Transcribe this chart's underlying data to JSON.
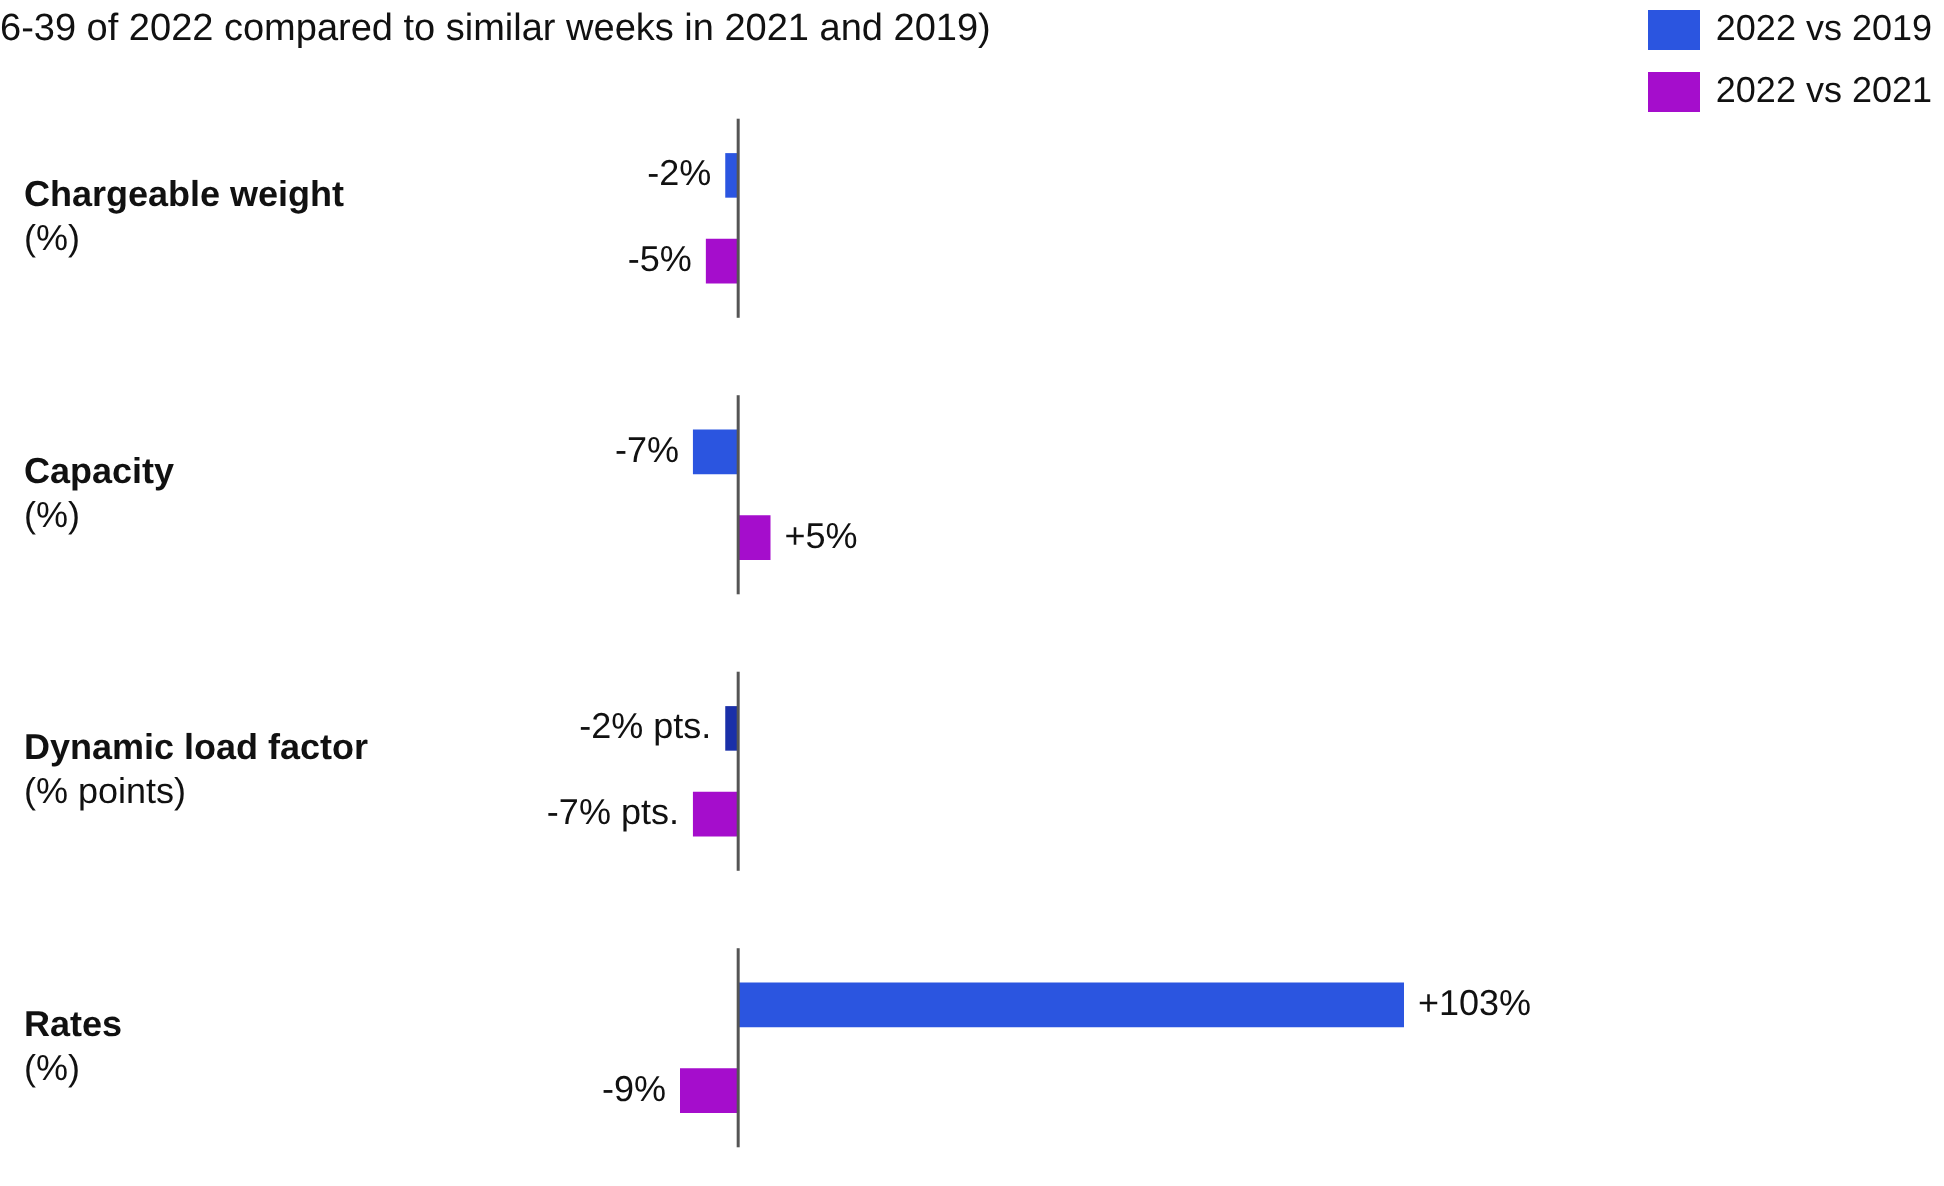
{
  "chart_data": {
    "type": "bar",
    "orientation": "horizontal",
    "title": "6-39 of 2022 compared to similar weeks in 2021 and 2019)",
    "categories": [
      "Chargeable weight\n(%)",
      "Capacity\n(%)",
      "Dynamic load factor\n(% points)",
      "Rates\n(%)"
    ],
    "series": [
      {
        "name": "2022 vs 2019",
        "color": "#2b55e0",
        "colors": [
          "#2b55e0",
          "#2b55e0",
          "#1a2fa8",
          "#2b55e0"
        ],
        "values": [
          -2,
          -7,
          -2,
          103
        ],
        "value_labels": [
          "-2%",
          "-7%",
          "-2% pts.",
          "+103%"
        ]
      },
      {
        "name": "2022 vs 2021",
        "color": "#a50dcc",
        "values": [
          -5,
          5,
          -7,
          -9
        ],
        "value_labels": [
          "-5%",
          "+5%",
          "-7% pts.",
          "-9%"
        ]
      }
    ],
    "ref_lines": [
      {
        "axis": "x",
        "value": 0,
        "color": "#555555"
      }
    ],
    "tick_labels": false,
    "legend": "top right"
  }
}
